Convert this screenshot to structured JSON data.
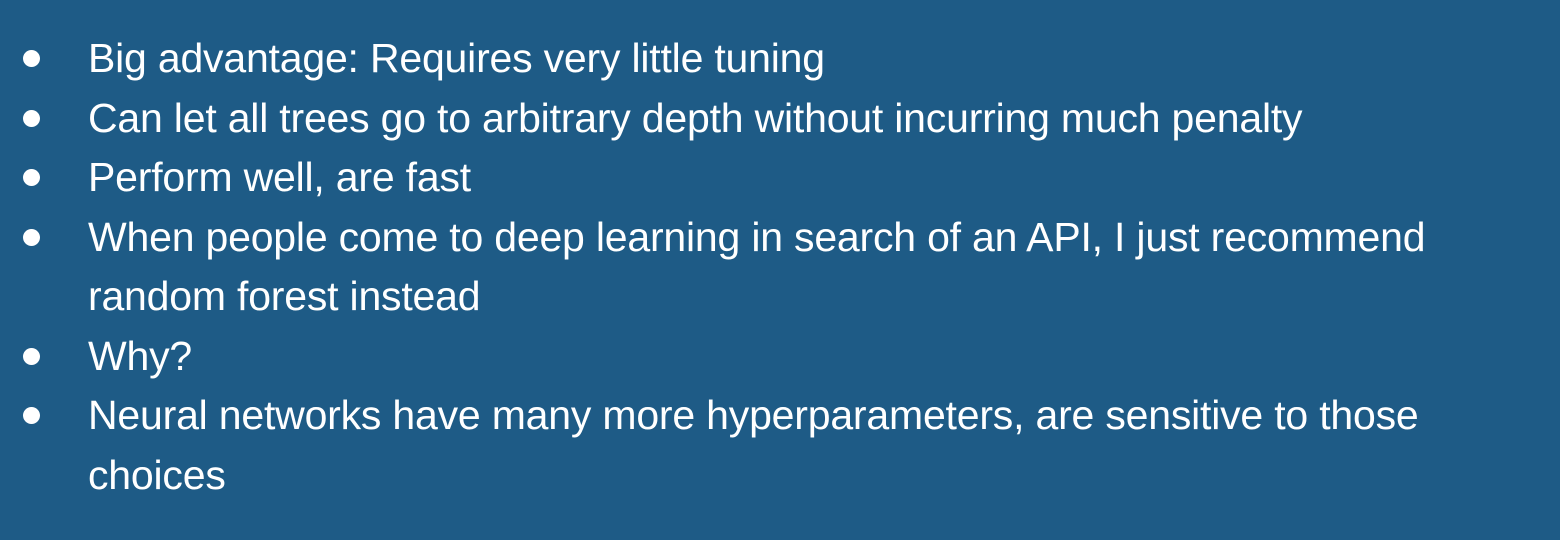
{
  "bullets": [
    {
      "text": "Big advantage: Requires very little tuning"
    },
    {
      "text": "Can let all trees go to arbitrary depth without incurring much penalty"
    },
    {
      "text": "Perform well, are fast"
    },
    {
      "text": "When people come to deep learning in search of an API, I just recommend random forest instead"
    },
    {
      "text": "Why?"
    },
    {
      "text": "Neural networks have many more hyperparameters, are sensitive to those choices"
    }
  ],
  "colors": {
    "background": "#1e5b86",
    "text": "#ffffff"
  }
}
